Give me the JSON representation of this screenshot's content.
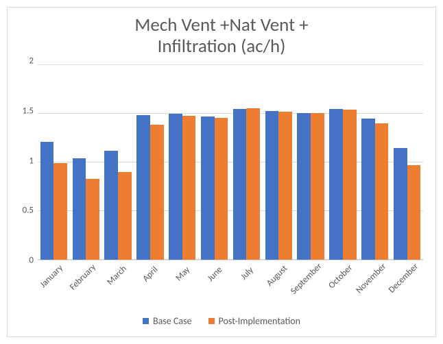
{
  "chart": {
    "type": "bar-grouped",
    "title_line1": "Mech Vent +Nat Vent +",
    "title_line2": "Infiltration (ac/h)",
    "title_fontsize": 27,
    "title_color": "#595959",
    "background_color": "#ffffff",
    "border_color": "#d9d9d9",
    "grid_color": "#d9d9d9",
    "axis_label_color": "#595959",
    "axis_label_fontsize": 13,
    "x_label_rotation_deg": -45,
    "categories": [
      "January",
      "February",
      "March",
      "April",
      "May",
      "June",
      "July",
      "August",
      "September",
      "October",
      "November",
      "December"
    ],
    "ylim": [
      0,
      2
    ],
    "ytick_step": 0.5,
    "yticks": [
      0,
      0.5,
      1,
      1.5,
      2
    ],
    "series": [
      {
        "name": "Base Case",
        "color": "#4472c4",
        "values": [
          1.21,
          1.04,
          1.12,
          1.49,
          1.5,
          1.47,
          1.55,
          1.53,
          1.51,
          1.55,
          1.45,
          1.15
        ]
      },
      {
        "name": "Post-Implementation",
        "color": "#ed7d31",
        "values": [
          0.99,
          0.83,
          0.9,
          1.39,
          1.48,
          1.46,
          1.56,
          1.52,
          1.51,
          1.54,
          1.4,
          0.97
        ]
      }
    ],
    "legend_fontsize": 14
  }
}
